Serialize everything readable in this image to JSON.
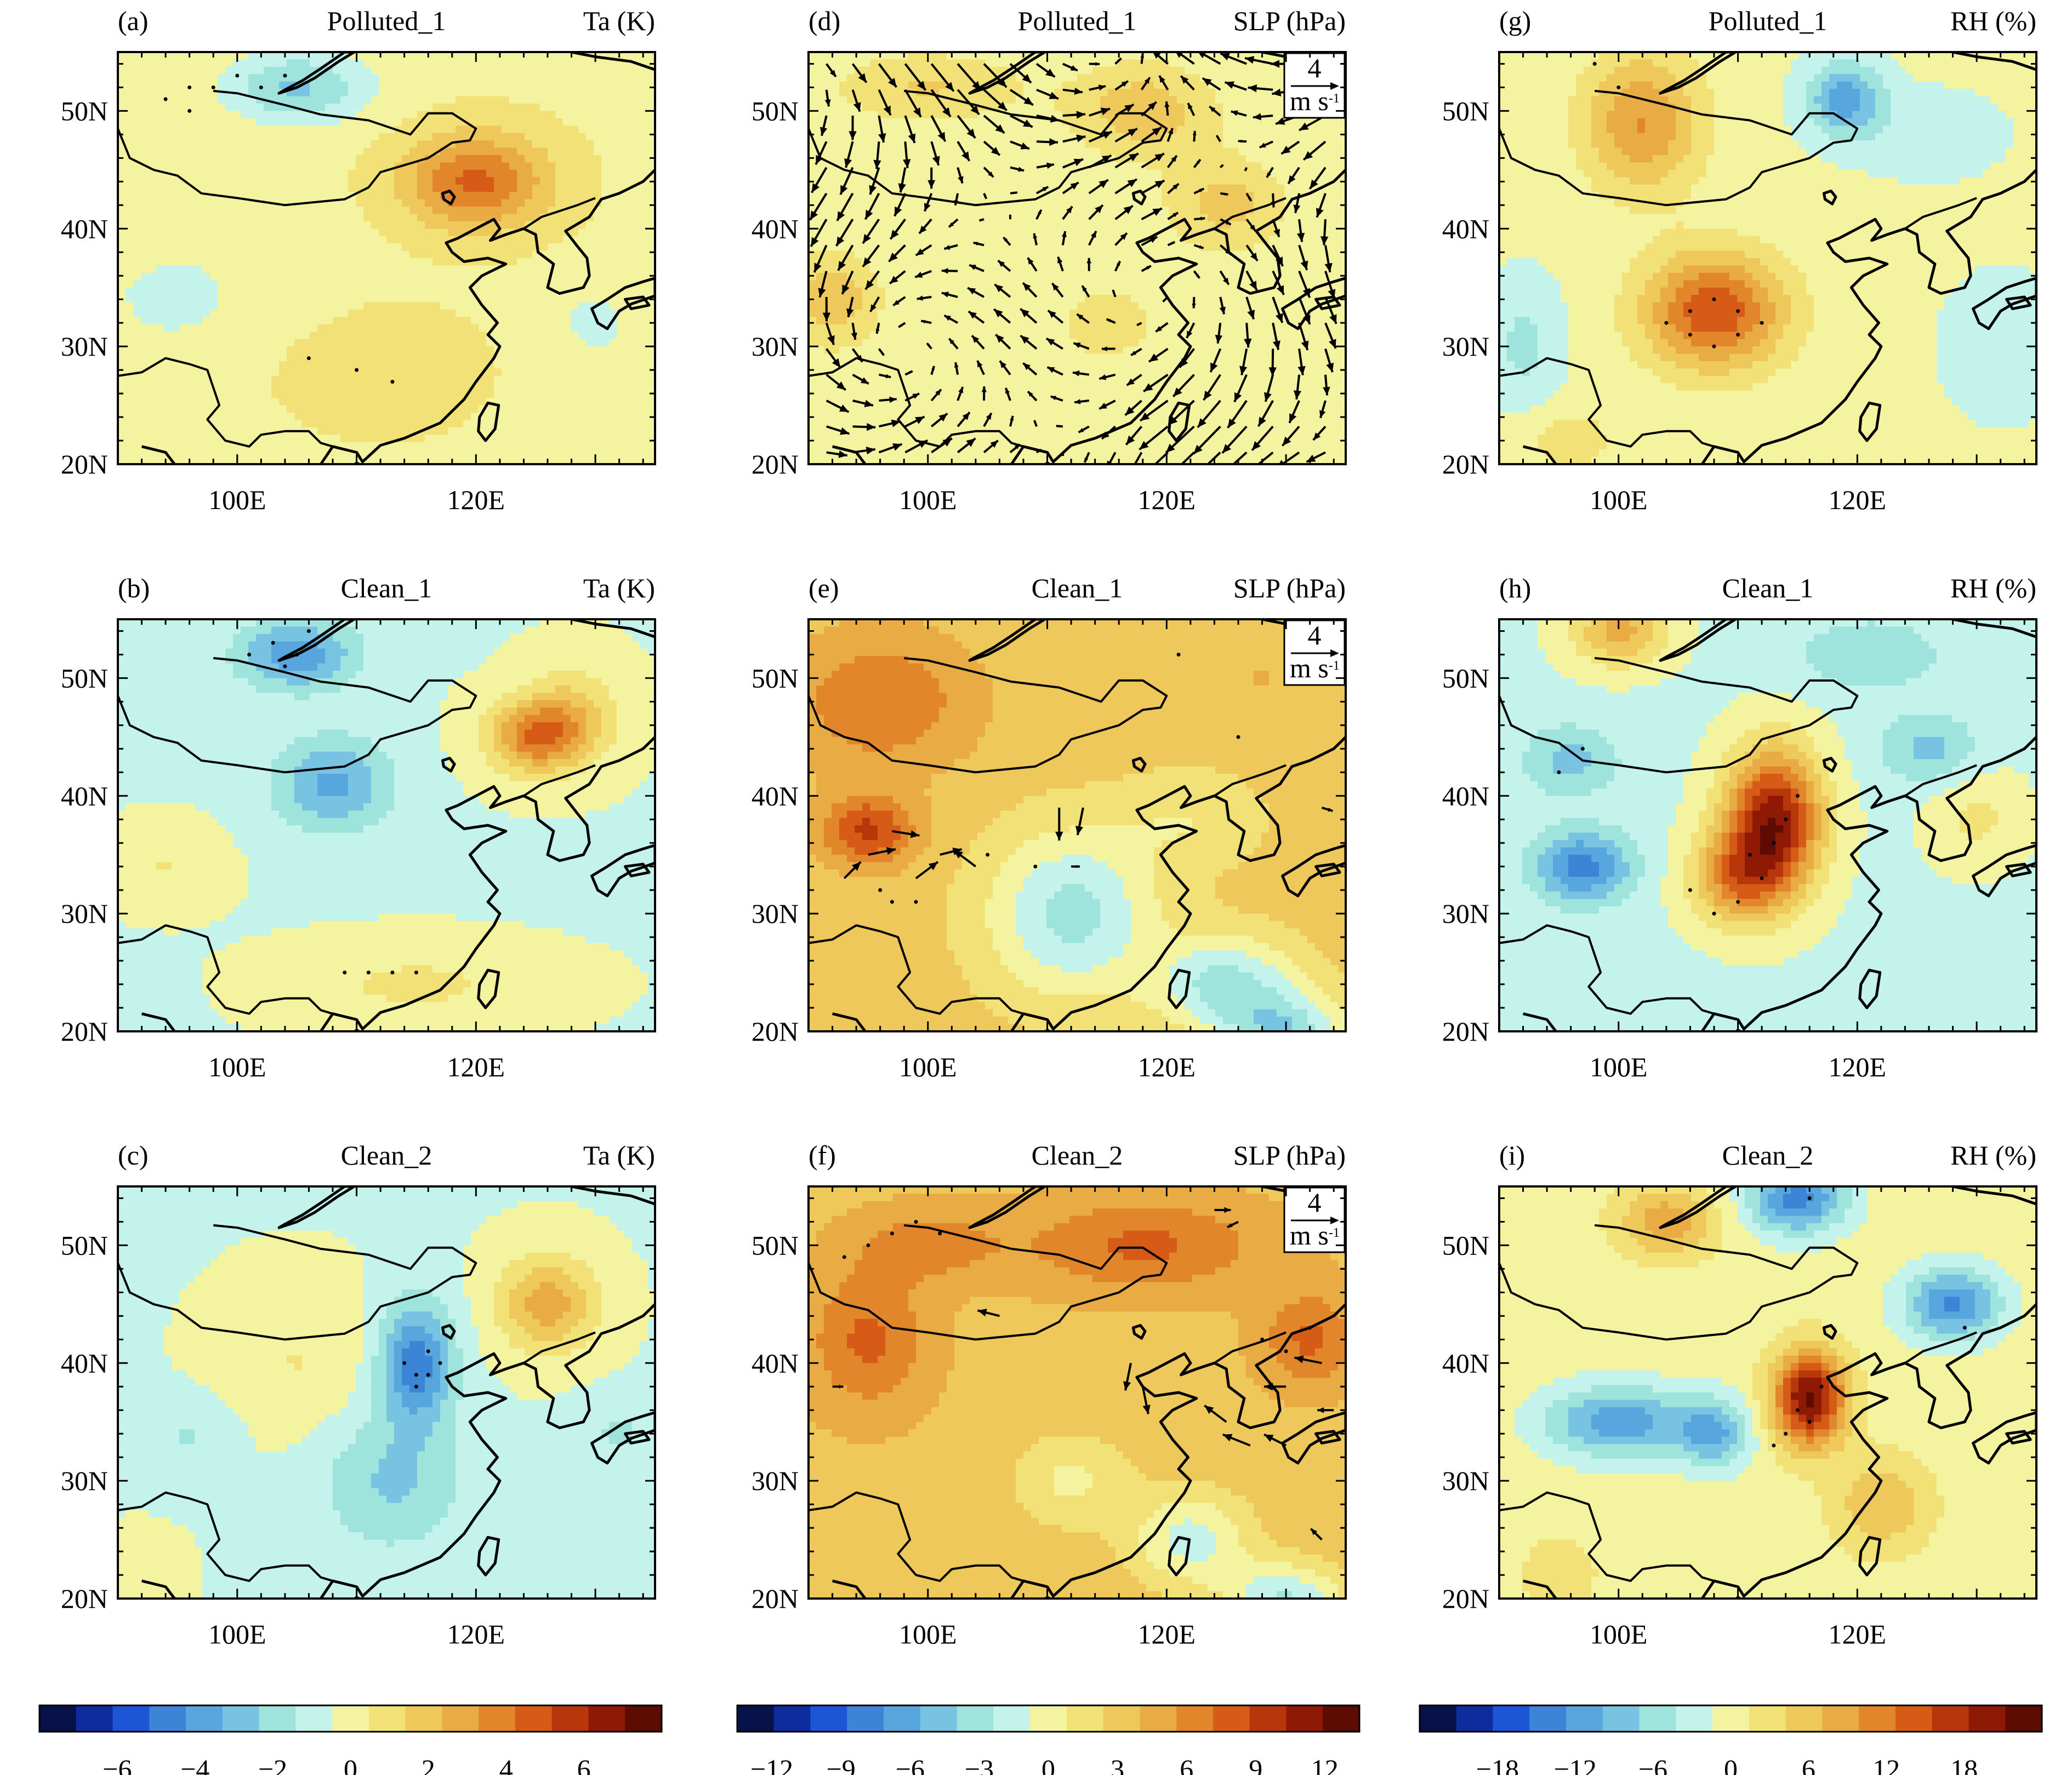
{
  "figure": {
    "lat_range": [
      20,
      55
    ],
    "lon_range": [
      90,
      135
    ],
    "lat_tick_labels": [
      "20N",
      "30N",
      "40N",
      "50N"
    ],
    "lon_tick_labels": [
      "100E",
      "120E"
    ],
    "vector_reference": {
      "value": "4",
      "unit": "m s",
      "unit_exponent": "-1"
    }
  },
  "colors": {
    "diverging_scale": [
      "#08124a",
      "#0d2d9e",
      "#1c56d6",
      "#3b84d6",
      "#58a6de",
      "#79c3e2",
      "#9ee3dc",
      "#c4f3ec",
      "#f4f3a0",
      "#f1e176",
      "#eec85a",
      "#e9ac45",
      "#e2862c",
      "#d65b16",
      "#b8370a",
      "#8e1a05",
      "#5e0b02"
    ]
  },
  "panels": [
    {
      "id": "a",
      "label": "(a)",
      "case": "Polluted_1",
      "variable": "Ta (K)",
      "has_vectors": false
    },
    {
      "id": "d",
      "label": "(d)",
      "case": "Polluted_1",
      "variable": "SLP (hPa)",
      "has_vectors": true
    },
    {
      "id": "g",
      "label": "(g)",
      "case": "Polluted_1",
      "variable": "RH (%)",
      "has_vectors": false
    },
    {
      "id": "b",
      "label": "(b)",
      "case": "Clean_1",
      "variable": "Ta (K)",
      "has_vectors": false
    },
    {
      "id": "e",
      "label": "(e)",
      "case": "Clean_1",
      "variable": "SLP (hPa)",
      "has_vectors": true
    },
    {
      "id": "h",
      "label": "(h)",
      "case": "Clean_1",
      "variable": "RH (%)",
      "has_vectors": false
    },
    {
      "id": "c",
      "label": "(c)",
      "case": "Clean_2",
      "variable": "Ta (K)",
      "has_vectors": false
    },
    {
      "id": "f",
      "label": "(f)",
      "case": "Clean_2",
      "variable": "SLP (hPa)",
      "has_vectors": true
    },
    {
      "id": "i",
      "label": "(i)",
      "case": "Clean_2",
      "variable": "RH (%)",
      "has_vectors": false
    }
  ],
  "colorbars": [
    {
      "variable": "Ta (K)",
      "range": [
        -8,
        8
      ],
      "labels": [
        "−6",
        "−4",
        "−2",
        "0",
        "2",
        "4",
        "6"
      ],
      "label_values": [
        -6,
        -4,
        -2,
        0,
        2,
        4,
        6
      ]
    },
    {
      "variable": "SLP (hPa)",
      "range": [
        -13.5,
        13.5
      ],
      "labels": [
        "−12",
        "−9",
        "−6",
        "−3",
        "0",
        "3",
        "6",
        "9",
        "12"
      ],
      "label_values": [
        -12,
        -9,
        -6,
        -3,
        0,
        3,
        6,
        9,
        12
      ]
    },
    {
      "variable": "RH (%)",
      "range": [
        -24,
        24
      ],
      "labels": [
        "−18",
        "−12",
        "−6",
        "0",
        "6",
        "12",
        "18"
      ],
      "label_values": [
        -18,
        -12,
        -6,
        0,
        6,
        12,
        18
      ]
    }
  ],
  "fields": {
    "a": {
      "base": 0.3,
      "blobs": [
        [
          120,
          44,
          4.2,
          6,
          4
        ],
        [
          105,
          52,
          -2.8,
          6,
          3
        ],
        [
          94,
          34,
          -1.2,
          4,
          3
        ],
        [
          130,
          32,
          -1.0,
          4,
          4
        ],
        [
          100,
          36,
          -0.5,
          8,
          6
        ],
        [
          112,
          28,
          0.8,
          8,
          5
        ]
      ],
      "stipple": [
        [
          94,
          51
        ],
        [
          96,
          52
        ],
        [
          98,
          52
        ],
        [
          100,
          53
        ],
        [
          102,
          52
        ],
        [
          96,
          50
        ],
        [
          104,
          53
        ],
        [
          106,
          29
        ],
        [
          113,
          27
        ],
        [
          110,
          28
        ]
      ]
    },
    "d": {
      "base": -0.5,
      "blobs": [
        [
          92,
          34,
          4,
          4,
          4
        ],
        [
          118,
          50,
          4,
          6,
          4
        ],
        [
          125,
          42,
          3.5,
          5,
          4
        ],
        [
          100,
          52,
          3,
          8,
          3
        ],
        [
          115,
          32,
          2,
          5,
          4
        ],
        [
          95,
          25,
          1,
          6,
          3
        ]
      ],
      "stipple": []
    },
    "g": {
      "base": -1.0,
      "blobs": [
        [
          108,
          33,
          16,
          6,
          5
        ],
        [
          102,
          49,
          11,
          5,
          6
        ],
        [
          119,
          51,
          -11,
          3,
          3
        ],
        [
          92,
          30,
          -4,
          3,
          5
        ],
        [
          132,
          30,
          -3,
          4,
          5
        ],
        [
          126,
          48,
          -3,
          5,
          3
        ],
        [
          96,
          22,
          4,
          4,
          3
        ]
      ],
      "stipple": [
        [
          104,
          32
        ],
        [
          106,
          33
        ],
        [
          108,
          34
        ],
        [
          110,
          33
        ],
        [
          112,
          32
        ],
        [
          106,
          31
        ],
        [
          108,
          30
        ],
        [
          110,
          31
        ],
        [
          98,
          54
        ],
        [
          100,
          52
        ]
      ]
    },
    "b": {
      "base": -0.5,
      "blobs": [
        [
          125,
          45,
          4.3,
          4,
          3
        ],
        [
          105,
          52,
          -3.5,
          5,
          3
        ],
        [
          108,
          41,
          -3.0,
          5,
          4
        ],
        [
          128,
          47,
          2,
          4,
          4
        ],
        [
          115,
          24,
          1.2,
          10,
          3
        ],
        [
          94,
          34,
          1.0,
          4,
          3
        ],
        [
          92,
          22,
          -0.7,
          3,
          3
        ]
      ],
      "stipple": [
        [
          101,
          52
        ],
        [
          103,
          53
        ],
        [
          105,
          52
        ],
        [
          104,
          51
        ],
        [
          106,
          54
        ],
        [
          109,
          25
        ],
        [
          111,
          25
        ],
        [
          113,
          25
        ],
        [
          115,
          25
        ]
      ]
    },
    "e": {
      "base": 3.0,
      "blobs": [
        [
          96,
          48,
          4,
          8,
          6
        ],
        [
          95,
          37,
          6,
          4,
          3
        ],
        [
          112,
          30,
          -6,
          7,
          7
        ],
        [
          125,
          24,
          -6,
          6,
          4
        ],
        [
          130,
          20,
          -6,
          5,
          3
        ],
        [
          122,
          38,
          -2,
          6,
          4
        ],
        [
          128,
          50,
          1,
          6,
          3
        ]
      ],
      "stipple": [
        [
          96,
          32
        ],
        [
          97,
          31
        ],
        [
          99,
          31
        ],
        [
          105,
          35
        ],
        [
          109,
          34
        ],
        [
          126,
          45
        ],
        [
          121,
          52
        ]
      ]
    },
    "h": {
      "base": -2.0,
      "blobs": [
        [
          113,
          38,
          22,
          4,
          6
        ],
        [
          110,
          33,
          12,
          4,
          4
        ],
        [
          100,
          54,
          10,
          4,
          3
        ],
        [
          97,
          34,
          -12,
          4,
          3
        ],
        [
          96,
          43,
          -6,
          4,
          3
        ],
        [
          126,
          44,
          -6,
          4,
          3
        ],
        [
          121,
          52,
          -5,
          6,
          3
        ],
        [
          130,
          38,
          4,
          4,
          4
        ]
      ],
      "stipple": [
        [
          106,
          32
        ],
        [
          108,
          30
        ],
        [
          110,
          31
        ],
        [
          112,
          33
        ],
        [
          113,
          36
        ],
        [
          114,
          38
        ],
        [
          115,
          40
        ],
        [
          111,
          35
        ],
        [
          97,
          44
        ],
        [
          95,
          42
        ]
      ]
    },
    "c": {
      "base": -0.5,
      "blobs": [
        [
          115,
          40,
          -4.3,
          3,
          5
        ],
        [
          126,
          45,
          3.5,
          4,
          4
        ],
        [
          113,
          30,
          -2,
          6,
          6
        ],
        [
          96,
          34,
          -1,
          4,
          3
        ],
        [
          132,
          34,
          -1,
          4,
          3
        ],
        [
          105,
          40,
          1,
          6,
          6
        ],
        [
          92,
          22,
          0.7,
          3,
          3
        ]
      ],
      "stipple": [
        [
          114,
          40
        ],
        [
          115,
          39
        ],
        [
          116,
          39
        ],
        [
          115,
          38
        ],
        [
          116,
          41
        ],
        [
          117,
          40
        ]
      ]
    },
    "f": {
      "base": 3.5,
      "blobs": [
        [
          118,
          50,
          4,
          10,
          4
        ],
        [
          95,
          42,
          4,
          5,
          6
        ],
        [
          112,
          30,
          -3,
          5,
          4
        ],
        [
          122,
          25,
          -5,
          5,
          4
        ],
        [
          130,
          20,
          -6,
          5,
          3
        ],
        [
          100,
          50,
          3,
          6,
          3
        ],
        [
          132,
          42,
          4,
          4,
          4
        ]
      ],
      "stipple": [
        [
          93,
          49
        ],
        [
          95,
          50
        ],
        [
          97,
          51
        ],
        [
          99,
          52
        ],
        [
          101,
          51
        ],
        [
          128,
          42
        ],
        [
          130,
          41
        ],
        [
          132,
          43
        ]
      ]
    },
    "i": {
      "base": 0,
      "blobs": [
        [
          116,
          37,
          22,
          3,
          4
        ],
        [
          100,
          35,
          -12,
          6,
          3
        ],
        [
          108,
          34,
          -10,
          3,
          3
        ],
        [
          115,
          54,
          -14,
          4,
          3
        ],
        [
          128,
          45,
          -13,
          4,
          3
        ],
        [
          104,
          52,
          9,
          4,
          3
        ],
        [
          122,
          28,
          7,
          4,
          4
        ],
        [
          95,
          22,
          4,
          3,
          3
        ]
      ],
      "stipple": [
        [
          115,
          36
        ],
        [
          116,
          35
        ],
        [
          114,
          34
        ],
        [
          117,
          38
        ],
        [
          113,
          33
        ],
        [
          116,
          54
        ],
        [
          129,
          43
        ]
      ]
    }
  },
  "vectors": {
    "d": {
      "mode": "dense"
    },
    "e": {
      "mode": "sparse",
      "list": [
        [
          95,
          35,
          2.5,
          0.5
        ],
        [
          97,
          37,
          2.5,
          -0.4
        ],
        [
          99,
          33,
          2.0,
          1.5
        ],
        [
          101,
          35,
          2.0,
          0.5
        ],
        [
          93,
          33,
          1.5,
          1.5
        ],
        [
          104,
          34,
          -2.0,
          1.5
        ],
        [
          111,
          39,
          0.0,
          -3.0
        ],
        [
          113,
          39,
          -0.5,
          -2.5
        ],
        [
          112,
          34,
          0.8,
          0.0
        ],
        [
          133,
          39,
          1.0,
          -0.3
        ]
      ]
    },
    "f": {
      "mode": "sparse",
      "list": [
        [
          106,
          44,
          -2.0,
          0.5
        ],
        [
          117,
          40,
          -0.5,
          -2.5
        ],
        [
          118,
          38,
          0.5,
          -2.5
        ],
        [
          125,
          35,
          -2.0,
          1.5
        ],
        [
          127,
          33,
          -2.5,
          1.0
        ],
        [
          130,
          33,
          -2.0,
          1.0
        ],
        [
          130,
          38,
          -2.0,
          0.0
        ],
        [
          133,
          40,
          -2.5,
          0.5
        ],
        [
          134,
          36,
          -1.5,
          0.0
        ],
        [
          124,
          53,
          1.5,
          0.0
        ],
        [
          126,
          52,
          -1.0,
          -0.5
        ],
        [
          92,
          38,
          1.0,
          0.0
        ],
        [
          133,
          25,
          -1.0,
          1.0
        ]
      ]
    }
  }
}
